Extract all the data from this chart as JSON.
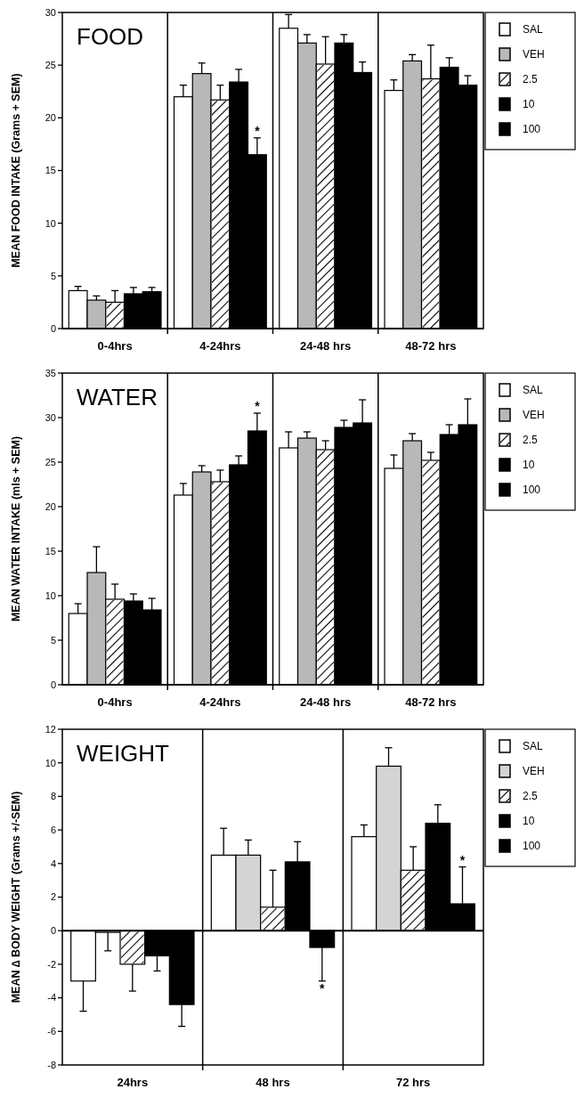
{
  "chart_data": [
    {
      "type": "bar",
      "title": "FOOD",
      "ylabel": "MEAN FOOD INTAKE (Grams + SEM)",
      "categories": [
        "0-4hrs",
        "4-24hrs",
        "24-48 hrs",
        "48-72 hrs"
      ],
      "ylim": [
        0,
        30
      ],
      "yticks": [
        0,
        5,
        10,
        15,
        20,
        25,
        30
      ],
      "legend": "right",
      "grid": false,
      "series": [
        {
          "name": "SAL",
          "color": "#ffffff",
          "values": [
            3.6,
            22.0,
            28.5,
            22.6
          ],
          "errors": [
            0.4,
            1.1,
            1.3,
            1.0
          ]
        },
        {
          "name": "VEH",
          "color": "#b8b8b8",
          "values": [
            2.7,
            24.2,
            27.1,
            25.4
          ],
          "errors": [
            0.4,
            1.0,
            0.8,
            0.6
          ]
        },
        {
          "name": "2.5",
          "color": "#ffffff",
          "values": [
            2.5,
            21.7,
            25.1,
            23.7
          ],
          "errors": [
            1.1,
            1.4,
            2.6,
            3.2
          ]
        },
        {
          "name": "10",
          "color": "#000000",
          "values": [
            3.3,
            23.4,
            27.1,
            24.8
          ],
          "errors": [
            0.6,
            1.2,
            0.8,
            0.9
          ]
        },
        {
          "name": "100",
          "color": "#000000",
          "values": [
            3.5,
            16.5,
            24.3,
            23.1
          ],
          "errors": [
            0.4,
            1.6,
            1.0,
            0.9
          ],
          "value_labels": [
            null,
            "*",
            null,
            null
          ]
        }
      ]
    },
    {
      "type": "bar",
      "title": "WATER",
      "ylabel": "MEAN WATER INTAKE (mls + SEM)",
      "categories": [
        "0-4hrs",
        "4-24hrs",
        "24-48 hrs",
        "48-72 hrs"
      ],
      "ylim": [
        0,
        35
      ],
      "yticks": [
        0,
        5,
        10,
        15,
        20,
        25,
        30,
        35
      ],
      "legend": "right",
      "grid": false,
      "series": [
        {
          "name": "SAL",
          "color": "#ffffff",
          "values": [
            8.0,
            21.3,
            26.6,
            24.3
          ],
          "errors": [
            1.1,
            1.3,
            1.8,
            1.5
          ]
        },
        {
          "name": "VEH",
          "color": "#b8b8b8",
          "values": [
            12.6,
            23.9,
            27.7,
            27.4
          ],
          "errors": [
            2.9,
            0.7,
            0.7,
            0.8
          ]
        },
        {
          "name": "2.5",
          "color": "#ffffff",
          "values": [
            9.6,
            22.8,
            26.4,
            25.2
          ],
          "errors": [
            1.7,
            1.3,
            1.0,
            0.9
          ]
        },
        {
          "name": "10",
          "color": "#000000",
          "values": [
            9.4,
            24.7,
            28.9,
            28.1
          ],
          "errors": [
            0.8,
            1.0,
            0.8,
            1.1
          ]
        },
        {
          "name": "100",
          "color": "#000000",
          "values": [
            8.4,
            28.5,
            29.4,
            29.2
          ],
          "errors": [
            1.3,
            2.0,
            2.6,
            2.9
          ],
          "value_labels": [
            null,
            "*",
            null,
            null
          ]
        }
      ]
    },
    {
      "type": "bar",
      "title": "WEIGHT",
      "ylabel": "MEAN ∆ BODY WEIGHT (Grams +/-SEM)",
      "categories": [
        "24hrs",
        "48 hrs",
        "72 hrs"
      ],
      "ylim": [
        -8,
        12
      ],
      "yticks": [
        -8,
        -6,
        -4,
        -2,
        0,
        2,
        4,
        6,
        8,
        10,
        12
      ],
      "legend": "right",
      "grid": false,
      "series": [
        {
          "name": "SAL",
          "color": "#ffffff",
          "values": [
            -3.0,
            4.5,
            5.6
          ],
          "errors": [
            1.8,
            1.6,
            0.7
          ]
        },
        {
          "name": "VEH",
          "color": "#d4d4d4",
          "values": [
            -0.1,
            4.5,
            9.8
          ],
          "errors": [
            1.1,
            0.9,
            1.1
          ]
        },
        {
          "name": "2.5",
          "color": "#ffffff",
          "values": [
            -2.0,
            1.4,
            3.6
          ],
          "errors": [
            1.6,
            2.2,
            1.4
          ]
        },
        {
          "name": "10",
          "color": "#000000",
          "values": [
            -1.5,
            4.1,
            6.4
          ],
          "errors": [
            0.9,
            1.2,
            1.1
          ]
        },
        {
          "name": "100",
          "color": "#000000",
          "values": [
            -4.4,
            -1.0,
            1.6
          ],
          "errors": [
            1.3,
            2.0,
            2.2
          ],
          "value_labels": [
            null,
            "*",
            "*"
          ]
        }
      ]
    }
  ]
}
